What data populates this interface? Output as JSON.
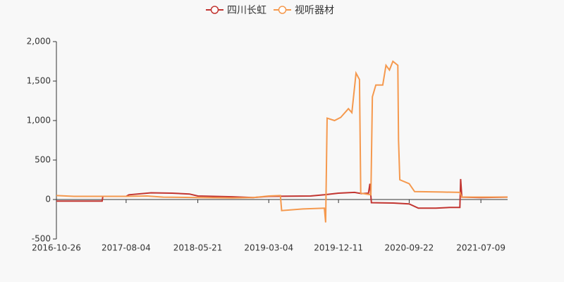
{
  "chart_data": {
    "type": "line",
    "xlim": [
      "2016-10-26",
      "2021-10-25"
    ],
    "xticks": [
      "2016-10-26",
      "2017-08-04",
      "2018-05-21",
      "2019-03-04",
      "2019-12-11",
      "2020-09-22",
      "2021-07-09"
    ],
    "ylim": [
      -500,
      2000
    ],
    "yticks": [
      -500,
      0,
      500,
      {
        "value": 1000,
        "label": "1,000"
      },
      {
        "value": 1500,
        "label": "1,500"
      },
      {
        "value": 2000,
        "label": "2,000"
      }
    ],
    "series": [
      {
        "name": "四川长虹",
        "color": "#c23531",
        "x": [
          "2016-10-26",
          "2017-04-29",
          "2017-05-02",
          "2017-08-04",
          "2017-08-15",
          "2017-11-13",
          "2018-02-06",
          "2018-04-17",
          "2018-05-21",
          "2018-10-08",
          "2018-12-31",
          "2019-03-04",
          "2019-08-20",
          "2019-10-15",
          "2019-12-11",
          "2020-02-14",
          "2020-03-13",
          "2020-04-10",
          "2020-04-16",
          "2020-04-22",
          "2020-07-20",
          "2020-09-22",
          "2020-10-29",
          "2021-01-08",
          "2021-03-06",
          "2021-04-15",
          "2021-04-18",
          "2021-04-23",
          "2021-07-09",
          "2021-10-25"
        ],
        "values": [
          -20,
          -20,
          40,
          40,
          60,
          85,
          80,
          70,
          45,
          35,
          25,
          40,
          45,
          60,
          80,
          90,
          75,
          80,
          200,
          -40,
          -45,
          -55,
          -110,
          -110,
          -100,
          -100,
          260,
          30,
          25,
          30
        ]
      },
      {
        "name": "视听器材",
        "color": "#f5994e",
        "x": [
          "2016-10-26",
          "2017-01-05",
          "2017-08-04",
          "2017-10-27",
          "2018-01-01",
          "2018-05-21",
          "2018-10-08",
          "2018-12-31",
          "2019-03-04",
          "2019-04-20",
          "2019-04-25",
          "2019-07-20",
          "2019-10-15",
          "2019-10-20",
          "2019-10-26",
          "2019-11-25",
          "2019-12-20",
          "2020-01-20",
          "2020-02-03",
          "2020-02-20",
          "2020-03-05",
          "2020-03-10",
          "2020-04-20",
          "2020-04-26",
          "2020-05-10",
          "2020-06-07",
          "2020-06-20",
          "2020-07-04",
          "2020-07-18",
          "2020-08-07",
          "2020-08-10",
          "2020-08-15",
          "2020-09-22",
          "2020-10-14",
          "2021-02-03",
          "2021-04-15",
          "2021-04-23",
          "2021-10-25"
        ],
        "values": [
          50,
          40,
          40,
          45,
          30,
          25,
          20,
          25,
          45,
          50,
          -140,
          -120,
          -110,
          -290,
          1030,
          1000,
          1040,
          1150,
          1100,
          1600,
          1520,
          80,
          60,
          1300,
          1450,
          1450,
          1700,
          1640,
          1750,
          1700,
          750,
          250,
          200,
          100,
          95,
          90,
          30,
          30
        ]
      }
    ]
  }
}
